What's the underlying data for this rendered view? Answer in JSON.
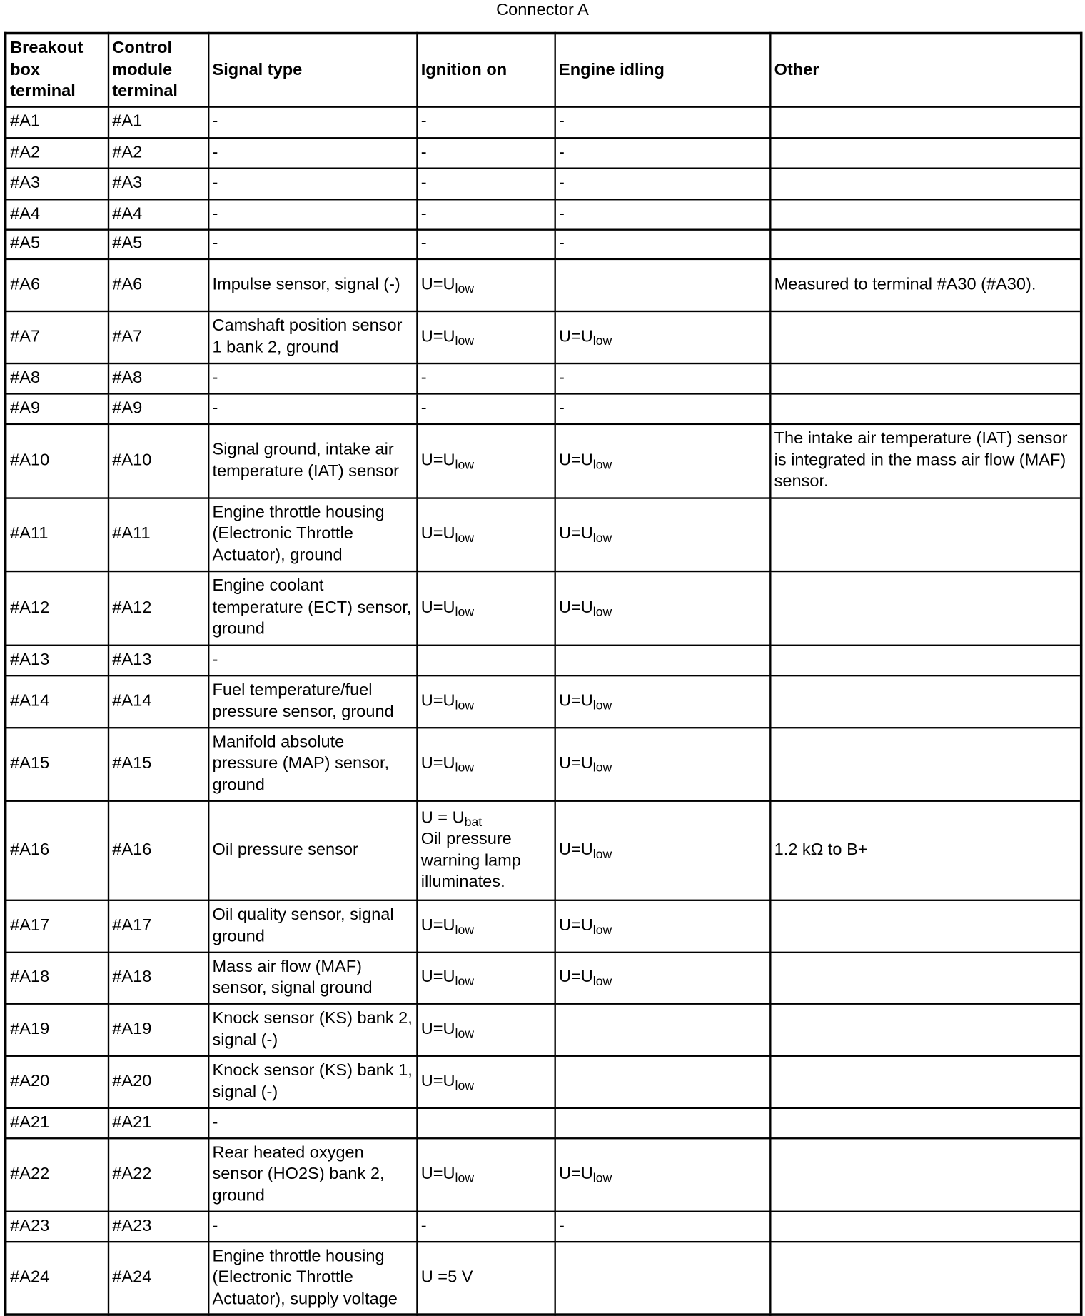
{
  "title": "Connector A",
  "headers": [
    "Breakout box terminal",
    "Control module terminal",
    "Signal type",
    "Ignition on",
    "Engine idling",
    "Other"
  ],
  "rows": [
    {
      "bb": "#A1",
      "cm": "#A1",
      "signal": "-",
      "ign": [
        {
          "t": "-"
        }
      ],
      "idle": [
        {
          "t": "-"
        }
      ],
      "other": ""
    },
    {
      "bb": "#A2",
      "cm": "#A2",
      "signal": "-",
      "ign": [
        {
          "t": "-"
        }
      ],
      "idle": [
        {
          "t": "-"
        }
      ],
      "other": ""
    },
    {
      "bb": "#A3",
      "cm": "#A3",
      "signal": "-",
      "ign": [
        {
          "t": "-"
        }
      ],
      "idle": [
        {
          "t": "-"
        }
      ],
      "other": ""
    },
    {
      "bb": "#A4",
      "cm": "#A4",
      "signal": "-",
      "ign": [
        {
          "t": "-"
        }
      ],
      "idle": [
        {
          "t": "-"
        }
      ],
      "other": ""
    },
    {
      "bb": "#A5",
      "cm": "#A5",
      "signal": "-",
      "ign": [
        {
          "t": "-"
        }
      ],
      "idle": [
        {
          "t": "-"
        }
      ],
      "other": ""
    },
    {
      "bb": "#A6",
      "cm": "#A6",
      "signal": "Impulse sensor, signal (-)",
      "ign": [
        {
          "t": "U=U",
          "sub": "low"
        }
      ],
      "idle": [],
      "other": "Measured to terminal #A30 (#A30)."
    },
    {
      "bb": "#A7",
      "cm": "#A7",
      "signal": "Camshaft position sensor 1 bank 2, ground",
      "ign": [
        {
          "t": "U=U",
          "sub": "low"
        }
      ],
      "idle": [
        {
          "t": "U=U",
          "sub": "low"
        }
      ],
      "other": ""
    },
    {
      "bb": "#A8",
      "cm": "#A8",
      "signal": "-",
      "ign": [
        {
          "t": "-"
        }
      ],
      "idle": [
        {
          "t": "-"
        }
      ],
      "other": ""
    },
    {
      "bb": "#A9",
      "cm": "#A9",
      "signal": "-",
      "ign": [
        {
          "t": "-"
        }
      ],
      "idle": [
        {
          "t": "-"
        }
      ],
      "other": ""
    },
    {
      "bb": "#A10",
      "cm": "#A10",
      "signal": "Signal ground, intake air temperature (IAT) sensor",
      "ign": [
        {
          "t": "U=U",
          "sub": "low"
        }
      ],
      "idle": [
        {
          "t": "U=U",
          "sub": "low"
        }
      ],
      "other": "The intake air temperature (IAT) sensor is integrated in the mass air flow (MAF) sensor."
    },
    {
      "bb": "#A11",
      "cm": "#A11",
      "signal": "Engine throttle housing (Electronic Throttle Actuator), ground",
      "ign": [
        {
          "t": "U=U",
          "sub": "low"
        }
      ],
      "idle": [
        {
          "t": "U=U",
          "sub": "low"
        }
      ],
      "other": ""
    },
    {
      "bb": "#A12",
      "cm": "#A12",
      "signal": "Engine coolant temperature (ECT) sensor, ground",
      "ign": [
        {
          "t": "U=U",
          "sub": "low"
        }
      ],
      "idle": [
        {
          "t": "U=U",
          "sub": "low"
        }
      ],
      "other": ""
    },
    {
      "bb": "#A13",
      "cm": "#A13",
      "signal": "-",
      "ign": [],
      "idle": [],
      "other": ""
    },
    {
      "bb": "#A14",
      "cm": "#A14",
      "signal": "Fuel temperature/fuel pressure sensor, ground",
      "ign": [
        {
          "t": "U=U",
          "sub": "low"
        }
      ],
      "idle": [
        {
          "t": "U=U",
          "sub": "low"
        }
      ],
      "other": ""
    },
    {
      "bb": "#A15",
      "cm": "#A15",
      "signal": "Manifold absolute pressure (MAP) sensor, ground",
      "ign": [
        {
          "t": "U=U",
          "sub": "low"
        }
      ],
      "idle": [
        {
          "t": "U=U",
          "sub": "low"
        }
      ],
      "other": ""
    },
    {
      "bb": "#A16",
      "cm": "#A16",
      "signal": "Oil pressure sensor",
      "ign": [
        {
          "t": "U = U",
          "sub": "bat"
        },
        {
          "t": "Oil pressure warning lamp illuminates."
        }
      ],
      "idle": [
        {
          "t": "U=U",
          "sub": "low"
        }
      ],
      "other": "1.2 kΩ to B+"
    },
    {
      "bb": "#A17",
      "cm": "#A17",
      "signal": "Oil quality sensor, signal ground",
      "ign": [
        {
          "t": "U=U",
          "sub": "low"
        }
      ],
      "idle": [
        {
          "t": "U=U",
          "sub": "low"
        }
      ],
      "other": ""
    },
    {
      "bb": "#A18",
      "cm": "#A18",
      "signal": "Mass air flow (MAF) sensor, signal ground",
      "ign": [
        {
          "t": "U=U",
          "sub": "low"
        }
      ],
      "idle": [
        {
          "t": "U=U",
          "sub": "low"
        }
      ],
      "other": ""
    },
    {
      "bb": "#A19",
      "cm": "#A19",
      "signal": "Knock sensor (KS) bank 2, signal (-)",
      "ign": [
        {
          "t": "U=U",
          "sub": "low"
        }
      ],
      "idle": [],
      "other": ""
    },
    {
      "bb": "#A20",
      "cm": "#A20",
      "signal": "Knock sensor (KS) bank 1, signal (-)",
      "ign": [
        {
          "t": "U=U",
          "sub": "low"
        }
      ],
      "idle": [],
      "other": ""
    },
    {
      "bb": "#A21",
      "cm": "#A21",
      "signal": "-",
      "ign": [],
      "idle": [],
      "other": ""
    },
    {
      "bb": "#A22",
      "cm": "#A22",
      "signal": "Rear heated oxygen sensor (HO2S) bank 2, ground",
      "ign": [
        {
          "t": "U=U",
          "sub": "low"
        }
      ],
      "idle": [
        {
          "t": "U=U",
          "sub": "low"
        }
      ],
      "other": ""
    },
    {
      "bb": "#A23",
      "cm": "#A23",
      "signal": "-",
      "ign": [
        {
          "t": "-"
        }
      ],
      "idle": [
        {
          "t": "-"
        }
      ],
      "other": ""
    },
    {
      "bb": "#A24",
      "cm": "#A24",
      "signal": "Engine throttle housing (Electronic Throttle Actuator), supply voltage",
      "ign": [
        {
          "t": "U =5 V"
        }
      ],
      "idle": [],
      "other": ""
    }
  ]
}
